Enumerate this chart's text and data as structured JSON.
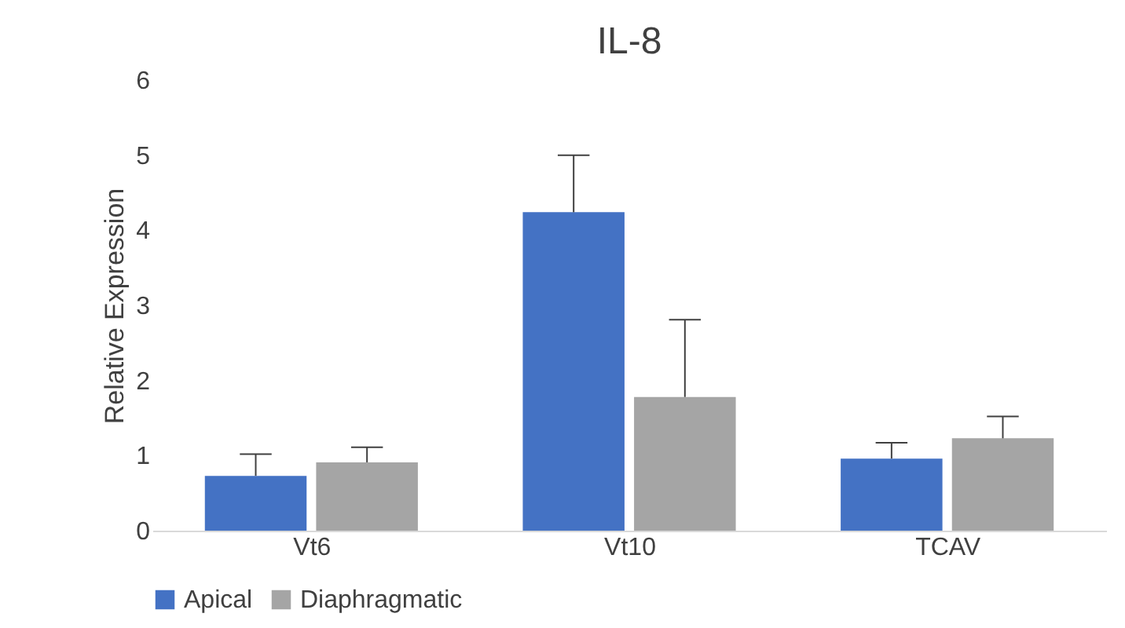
{
  "chart_data": {
    "type": "bar",
    "title": "IL-8",
    "ylabel": "Relative Expression",
    "categories": [
      "Vt6",
      "Vt10",
      "TCAV"
    ],
    "series": [
      {
        "name": "Apical",
        "color": "#4472c4",
        "values": [
          0.73,
          4.24,
          0.96
        ],
        "errors": [
          [
            0.73,
            1.02
          ],
          [
            4.24,
            5.0
          ],
          [
            0.96,
            1.17
          ]
        ]
      },
      {
        "name": "Diaphragmatic",
        "color": "#a5a5a5",
        "values": [
          0.91,
          1.78,
          1.23
        ],
        "errors": [
          [
            0.91,
            1.11
          ],
          [
            1.78,
            2.81
          ],
          [
            1.23,
            1.52
          ]
        ]
      }
    ],
    "ylim": [
      0,
      6
    ],
    "yticks": [
      0,
      1,
      2,
      3,
      4,
      5,
      6
    ],
    "grid": false,
    "legend": "bottom"
  }
}
